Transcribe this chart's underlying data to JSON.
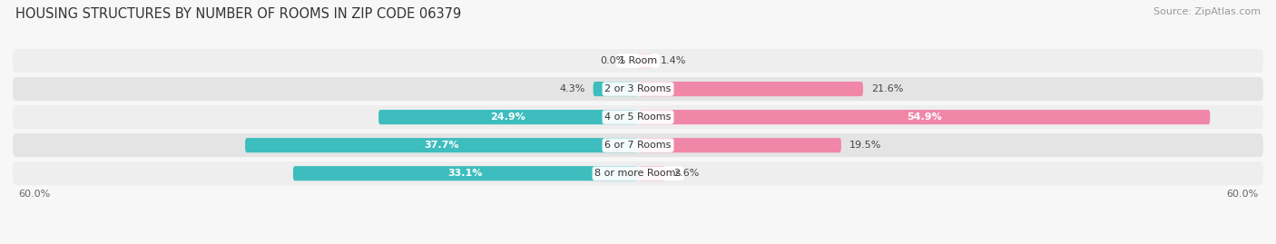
{
  "title": "HOUSING STRUCTURES BY NUMBER OF ROOMS IN ZIP CODE 06379",
  "source": "Source: ZipAtlas.com",
  "categories": [
    "1 Room",
    "2 or 3 Rooms",
    "4 or 5 Rooms",
    "6 or 7 Rooms",
    "8 or more Rooms"
  ],
  "owner_values": [
    0.0,
    4.3,
    24.9,
    37.7,
    33.1
  ],
  "renter_values": [
    1.4,
    21.6,
    54.9,
    19.5,
    2.6
  ],
  "owner_color": "#3dbdbd",
  "renter_color": "#f087a8",
  "row_bg_light": "#eeeeee",
  "row_bg_dark": "#e4e4e4",
  "xlim": 60.0,
  "title_fontsize": 10.5,
  "source_fontsize": 8,
  "label_fontsize": 8,
  "axis_fontsize": 8,
  "legend_fontsize": 8.5,
  "bar_height": 0.52,
  "background_color": "#f7f7f7"
}
